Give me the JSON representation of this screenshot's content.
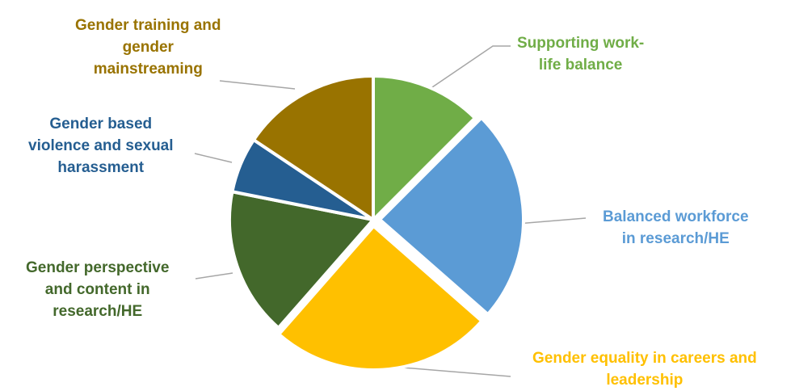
{
  "chart_data": {
    "type": "pie",
    "title": "",
    "slices": [
      {
        "label": "Supporting work-life balance",
        "lines": [
          "Supporting work-",
          "life balance"
        ],
        "value": 12,
        "color": "#70ad47"
      },
      {
        "label": "Balanced workforce in research/HE",
        "lines": [
          "Balanced workforce",
          "in research/HE"
        ],
        "value": 23,
        "color": "#5b9bd5"
      },
      {
        "label": "Gender equality in careers and leadership",
        "lines": [
          "Gender equality in careers and",
          "leadership"
        ],
        "value": 24,
        "color": "#ffc000"
      },
      {
        "label": "Gender perspective and content in research/HE",
        "lines": [
          "Gender perspective",
          "and content in",
          "research/HE"
        ],
        "value": 16,
        "color": "#43682b"
      },
      {
        "label": "Gender based violence and sexual harassment",
        "lines": [
          "Gender based",
          "violence and sexual",
          "harassment"
        ],
        "value": 6,
        "color": "#255e91"
      },
      {
        "label": "Gender training and gender mainstreaming",
        "lines": [
          "Gender training and",
          "gender",
          "mainstreaming"
        ],
        "value": 15,
        "color": "#997300"
      }
    ],
    "legend": "none",
    "leader_line_color": "#a6a6a6"
  }
}
